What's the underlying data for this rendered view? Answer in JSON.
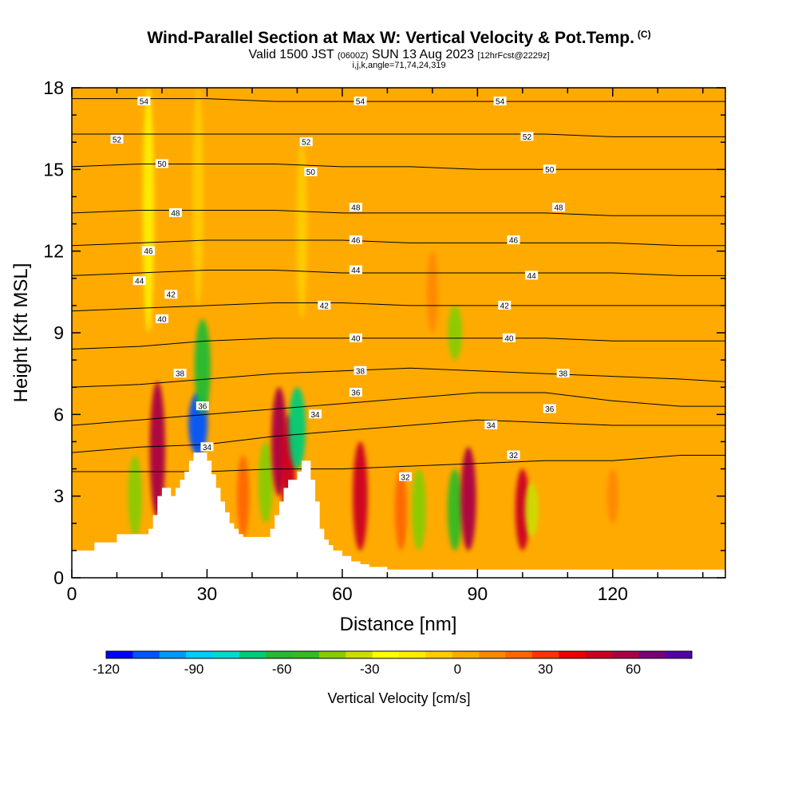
{
  "header": {
    "title": "Wind-Parallel Section at Max W: Vertical Velocity & Pot.Temp.",
    "title_tag": "(C)",
    "subtitle_a": "Valid 1500 JST",
    "subtitle_b": "(0600Z)",
    "subtitle_c": "SUN 13 Aug 2023",
    "subtitle_d": "[12hrFcst@2229z]",
    "subtitle2": "i,j,k,angle=71,74,24,319"
  },
  "chart_data": {
    "type": "heatmap",
    "xlabel": "Distance [nm]",
    "ylabel": "Height [Kft MSL]",
    "xlim": [
      0,
      145
    ],
    "ylim": [
      0,
      18
    ],
    "x_ticks": [
      0,
      30,
      60,
      90,
      120
    ],
    "y_ticks": [
      0,
      3,
      6,
      9,
      12,
      15,
      18
    ],
    "colorbar": {
      "label": "Vertical Velocity [cm/s]",
      "range": [
        -120,
        80
      ],
      "tick_values": [
        -120,
        -90,
        -60,
        -30,
        0,
        30,
        60
      ],
      "colors": [
        "#0000ff",
        "#0055ff",
        "#0099ff",
        "#00ccff",
        "#00dccc",
        "#00cc77",
        "#22bb33",
        "#33bb22",
        "#88cc00",
        "#ccdd00",
        "#ffff00",
        "#ffee00",
        "#ffcc00",
        "#ffaa00",
        "#ff8800",
        "#ff6600",
        "#ff3300",
        "#ee0000",
        "#cc0022",
        "#aa0044",
        "#7a0077",
        "#5500aa"
      ]
    },
    "background_w": 5,
    "w_cores": [
      {
        "x": 17,
        "y1": 9,
        "y2": 18,
        "w": -15
      },
      {
        "x": 19,
        "y1": 2.2,
        "y2": 7.2,
        "w": 55
      },
      {
        "x": 14,
        "y1": 1.5,
        "y2": 4.5,
        "w": -40
      },
      {
        "x": 28,
        "y1": 4.5,
        "y2": 6.8,
        "w": -110
      },
      {
        "x": 29,
        "y1": 6,
        "y2": 9.5,
        "w": -60
      },
      {
        "x": 28,
        "y1": 10,
        "y2": 18,
        "w": -10
      },
      {
        "x": 38,
        "y1": 1.5,
        "y2": 4.5,
        "w": 25
      },
      {
        "x": 43,
        "y1": 2,
        "y2": 5,
        "w": -45
      },
      {
        "x": 46,
        "y1": 3,
        "y2": 7,
        "w": 55
      },
      {
        "x": 48,
        "y1": 2,
        "y2": 6,
        "w": 45
      },
      {
        "x": 50,
        "y1": 4,
        "y2": 7,
        "w": -70
      },
      {
        "x": 51,
        "y1": 9.5,
        "y2": 16,
        "w": -10
      },
      {
        "x": 64,
        "y1": 1,
        "y2": 5,
        "w": 50
      },
      {
        "x": 73,
        "y1": 1,
        "y2": 4,
        "w": 20
      },
      {
        "x": 77,
        "y1": 1,
        "y2": 4,
        "w": -45
      },
      {
        "x": 80,
        "y1": 9,
        "y2": 12,
        "w": 15
      },
      {
        "x": 85,
        "y1": 1,
        "y2": 4,
        "w": -50
      },
      {
        "x": 85,
        "y1": 8,
        "y2": 10,
        "w": -45
      },
      {
        "x": 88,
        "y1": 1,
        "y2": 4.8,
        "w": 55
      },
      {
        "x": 100,
        "y1": 1,
        "y2": 4,
        "w": 45
      },
      {
        "x": 102,
        "y1": 1.5,
        "y2": 3.5,
        "w": -35
      },
      {
        "x": 120,
        "y1": 2,
        "y2": 4,
        "w": 15
      }
    ],
    "terrain": {
      "x": [
        0,
        5,
        10,
        13,
        16,
        17,
        18,
        19,
        20,
        21,
        22,
        23,
        24,
        25,
        26,
        27,
        28,
        29,
        30,
        31,
        32,
        33,
        34,
        35,
        36,
        37,
        38,
        39,
        40,
        41,
        42,
        43,
        44,
        45,
        46,
        47,
        48,
        49,
        50,
        51,
        52,
        53,
        54,
        55,
        56,
        57,
        58,
        60,
        62,
        64,
        66,
        70,
        145
      ],
      "y": [
        1.0,
        1.3,
        1.6,
        1.6,
        1.6,
        1.8,
        2.3,
        3.0,
        3.3,
        3.3,
        3.0,
        3.3,
        3.6,
        3.9,
        4.3,
        4.6,
        4.6,
        4.6,
        4.3,
        3.8,
        3.3,
        2.8,
        2.4,
        2.0,
        1.8,
        1.6,
        1.5,
        1.5,
        1.5,
        1.5,
        1.5,
        1.5,
        1.8,
        2.3,
        2.8,
        3.3,
        3.6,
        3.6,
        3.9,
        4.3,
        4.3,
        3.6,
        2.8,
        1.8,
        1.4,
        1.2,
        1.0,
        0.8,
        0.6,
        0.5,
        0.4,
        0.3,
        0.3
      ]
    },
    "isentropes": [
      {
        "theta": 32,
        "y": [
          3.9,
          3.9,
          3.9,
          4.0,
          4.0,
          4.1,
          4.2,
          4.3,
          4.3,
          4.5,
          4.5
        ]
      },
      {
        "theta": 34,
        "y": [
          4.6,
          4.8,
          4.9,
          5.2,
          5.4,
          5.6,
          5.8,
          5.7,
          5.6,
          5.6,
          5.6
        ]
      },
      {
        "theta": 36,
        "y": [
          5.6,
          5.8,
          6.0,
          6.2,
          6.4,
          6.6,
          6.8,
          6.8,
          6.5,
          6.3,
          6.3
        ]
      },
      {
        "theta": 38,
        "y": [
          7.0,
          7.1,
          7.3,
          7.5,
          7.6,
          7.7,
          7.6,
          7.5,
          7.4,
          7.3,
          7.2
        ]
      },
      {
        "theta": 40,
        "y": [
          8.4,
          8.5,
          8.7,
          8.8,
          8.8,
          8.8,
          8.8,
          8.8,
          8.7,
          8.7,
          8.7
        ]
      },
      {
        "theta": 42,
        "y": [
          9.8,
          9.9,
          10.0,
          10.1,
          10.1,
          10.0,
          10.0,
          10.0,
          10.0,
          10.0,
          10.0
        ]
      },
      {
        "theta": 44,
        "y": [
          11.1,
          11.2,
          11.3,
          11.3,
          11.2,
          11.2,
          11.2,
          11.2,
          11.2,
          11.1,
          11.1
        ]
      },
      {
        "theta": 46,
        "y": [
          12.2,
          12.3,
          12.4,
          12.4,
          12.4,
          12.3,
          12.3,
          12.3,
          12.3,
          12.2,
          12.2
        ]
      },
      {
        "theta": 48,
        "y": [
          13.4,
          13.5,
          13.5,
          13.5,
          13.4,
          13.4,
          13.4,
          13.4,
          13.3,
          13.3,
          13.3
        ]
      },
      {
        "theta": 50,
        "y": [
          15.1,
          15.2,
          15.2,
          15.2,
          15.1,
          15.1,
          15.0,
          15.0,
          15.0,
          15.0,
          15.0
        ]
      },
      {
        "theta": 52,
        "y": [
          16.3,
          16.3,
          16.3,
          16.3,
          16.3,
          16.3,
          16.3,
          16.3,
          16.2,
          16.2,
          16.2
        ]
      },
      {
        "theta": 54,
        "y": [
          17.6,
          17.6,
          17.6,
          17.5,
          17.5,
          17.5,
          17.5,
          17.5,
          17.5,
          17.5,
          17.5
        ]
      }
    ],
    "isentrope_x": [
      0,
      15,
      30,
      45,
      60,
      75,
      90,
      105,
      120,
      135,
      145
    ],
    "isentrope_labels": [
      {
        "text": "54",
        "x": 16,
        "y": 17.5
      },
      {
        "text": "54",
        "x": 64,
        "y": 17.5
      },
      {
        "text": "54",
        "x": 95,
        "y": 17.5
      },
      {
        "text": "52",
        "x": 10,
        "y": 16.1
      },
      {
        "text": "52",
        "x": 52,
        "y": 16.0
      },
      {
        "text": "52",
        "x": 101,
        "y": 16.2
      },
      {
        "text": "50",
        "x": 20,
        "y": 15.2
      },
      {
        "text": "50",
        "x": 53,
        "y": 14.9
      },
      {
        "text": "50",
        "x": 106,
        "y": 15.0
      },
      {
        "text": "48",
        "x": 23,
        "y": 13.4
      },
      {
        "text": "48",
        "x": 63,
        "y": 13.6
      },
      {
        "text": "48",
        "x": 108,
        "y": 13.6
      },
      {
        "text": "46",
        "x": 17,
        "y": 12.0
      },
      {
        "text": "46",
        "x": 63,
        "y": 12.4
      },
      {
        "text": "46",
        "x": 98,
        "y": 12.4
      },
      {
        "text": "44",
        "x": 15,
        "y": 10.9
      },
      {
        "text": "44",
        "x": 63,
        "y": 11.3
      },
      {
        "text": "44",
        "x": 102,
        "y": 11.1
      },
      {
        "text": "42",
        "x": 22,
        "y": 10.4
      },
      {
        "text": "42",
        "x": 56,
        "y": 10.0
      },
      {
        "text": "42",
        "x": 96,
        "y": 10.0
      },
      {
        "text": "40",
        "x": 20,
        "y": 9.5
      },
      {
        "text": "40",
        "x": 63,
        "y": 8.8
      },
      {
        "text": "40",
        "x": 97,
        "y": 8.8
      },
      {
        "text": "38",
        "x": 24,
        "y": 7.5
      },
      {
        "text": "38",
        "x": 64,
        "y": 7.6
      },
      {
        "text": "38",
        "x": 109,
        "y": 7.5
      },
      {
        "text": "36",
        "x": 29,
        "y": 6.3
      },
      {
        "text": "36",
        "x": 63,
        "y": 6.8
      },
      {
        "text": "36",
        "x": 106,
        "y": 6.2
      },
      {
        "text": "34",
        "x": 54,
        "y": 6.0
      },
      {
        "text": "34",
        "x": 93,
        "y": 5.6
      },
      {
        "text": "34",
        "x": 30,
        "y": 4.8
      },
      {
        "text": "32",
        "x": 74,
        "y": 3.7
      },
      {
        "text": "32",
        "x": 98,
        "y": 4.5
      }
    ]
  }
}
